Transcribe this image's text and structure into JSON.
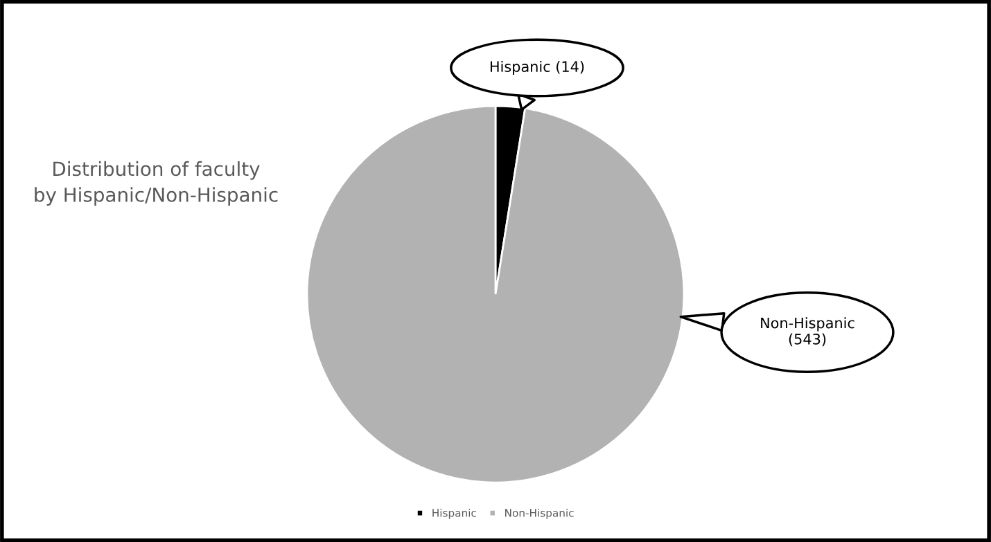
{
  "chart_data": {
    "type": "pie",
    "title": "Distribution of faculty\nby Hispanic/Non-Hispanic",
    "categories": [
      "Hispanic",
      "Non-Hispanic"
    ],
    "values": [
      14,
      543
    ],
    "colors": [
      "#000000",
      "#b2b2b2"
    ],
    "value_labels": [
      "Hispanic (14)",
      "Non-Hispanic\n(543)"
    ],
    "legend": "bottom"
  }
}
